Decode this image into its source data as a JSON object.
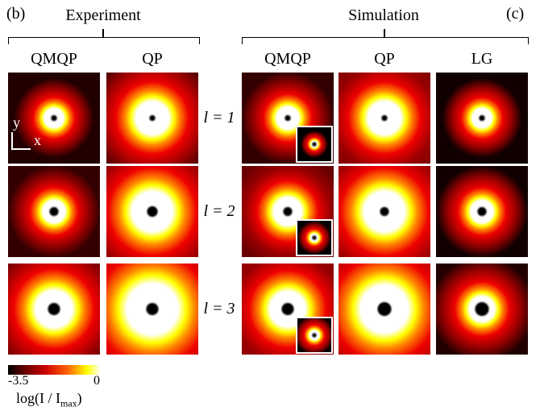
{
  "panels": {
    "b": {
      "label": "(b)",
      "title": "Experiment",
      "columns": [
        "QMQP",
        "QP"
      ]
    },
    "c": {
      "label": "(c)",
      "title": "Simulation",
      "columns": [
        "QMQP",
        "QP",
        "LG"
      ]
    }
  },
  "rows": [
    "l = 1",
    "l = 2",
    "l = 3"
  ],
  "axes": {
    "y": "y",
    "x": "x"
  },
  "colorbar": {
    "min": -3.5,
    "max": 0,
    "label": "log(I / I",
    "sub": "max",
    "end": ")"
  }
}
